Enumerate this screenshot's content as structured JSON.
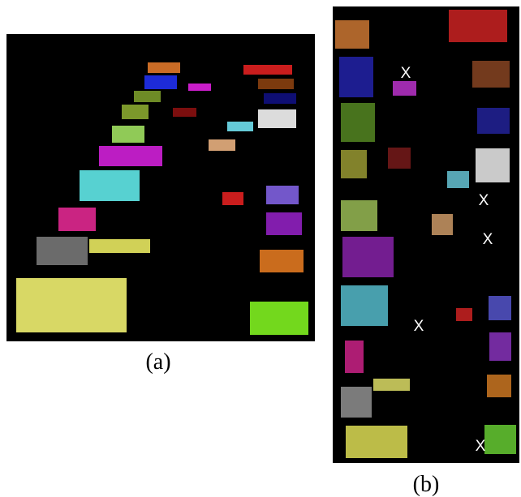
{
  "panels": [
    {
      "label": "(a)"
    },
    {
      "label": "(b)",
      "markers": [
        "X",
        "X",
        "X",
        "X",
        "X"
      ]
    }
  ]
}
